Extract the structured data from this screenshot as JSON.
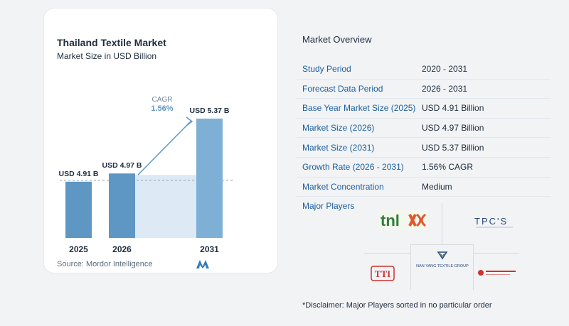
{
  "chart_data": {
    "type": "bar",
    "title": "Thailand Textile Market",
    "subtitle": "Market Size in USD Billion",
    "categories": [
      "2025",
      "2026",
      "2031"
    ],
    "values": [
      4.91,
      4.97,
      5.37
    ],
    "value_labels": [
      "USD 4.91 B",
      "USD 4.97 B",
      "USD 5.37 B"
    ],
    "cagr_label": "CAGR",
    "cagr_value": "1.56%",
    "source": "Source:  Mordor Intelligence",
    "colors": {
      "bar": "#5e97c4",
      "bar_light": "#7eb0d6",
      "cagr_band": "#dde9f4",
      "accent": "#5e97c4"
    }
  },
  "overview": {
    "title": "Market Overview",
    "rows": [
      {
        "key": "Study Period",
        "value": "2020 - 2031"
      },
      {
        "key": "Forecast Data Period",
        "value": "2026 - 2031"
      },
      {
        "key": "Base Year Market Size (2025)",
        "value": "USD 4.91 Billion"
      },
      {
        "key": "Market Size (2026)",
        "value": "USD 4.97 Billion"
      },
      {
        "key": "Market Size (2031)",
        "value": "USD 5.37 Billion"
      },
      {
        "key": "Growth Rate (2026 - 2031)",
        "value": "1.56% CAGR"
      },
      {
        "key": "Market Concentration",
        "value": "Medium"
      }
    ]
  },
  "players": {
    "title": "Major Players",
    "logos": [
      {
        "name": "tnl-logo",
        "text": "tnl"
      },
      {
        "name": "tpcs-logo",
        "text": "TPC'S"
      },
      {
        "name": "nan-yang-logo",
        "text": "NAN YANG TEXTILE GROUP"
      },
      {
        "name": "tti-logo",
        "text": "TTI"
      },
      {
        "name": "thai-textile-logo",
        "text": ""
      }
    ]
  },
  "disclaimer": "*Disclaimer: Major Players sorted in no particular order"
}
